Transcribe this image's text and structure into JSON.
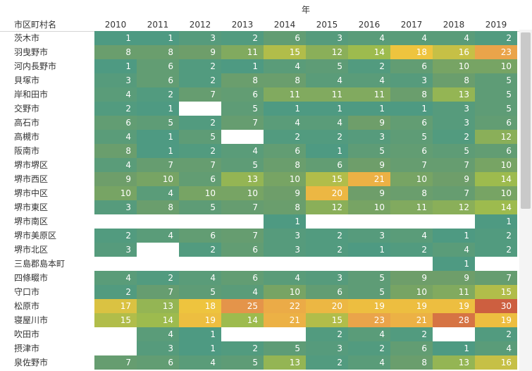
{
  "chart_data": {
    "type": "heatmap",
    "column_header": "年",
    "row_header": "市区町村名",
    "years": [
      "2010",
      "2011",
      "2012",
      "2013",
      "2014",
      "2015",
      "2016",
      "2017",
      "2018",
      "2019"
    ],
    "rows": [
      {
        "name": "茨木市",
        "values": [
          1,
          1,
          3,
          2,
          6,
          3,
          4,
          4,
          4,
          2
        ]
      },
      {
        "name": "羽曳野市",
        "values": [
          8,
          8,
          9,
          11,
          15,
          12,
          14,
          18,
          16,
          23
        ]
      },
      {
        "name": "河内長野市",
        "values": [
          1,
          6,
          2,
          1,
          4,
          5,
          2,
          6,
          10,
          10
        ]
      },
      {
        "name": "貝塚市",
        "values": [
          3,
          6,
          2,
          8,
          8,
          4,
          4,
          3,
          8,
          5
        ]
      },
      {
        "name": "岸和田市",
        "values": [
          4,
          2,
          7,
          6,
          11,
          11,
          11,
          8,
          13,
          5
        ]
      },
      {
        "name": "交野市",
        "values": [
          2,
          1,
          null,
          5,
          1,
          1,
          1,
          1,
          3,
          5
        ]
      },
      {
        "name": "高石市",
        "values": [
          6,
          5,
          2,
          7,
          4,
          4,
          9,
          6,
          3,
          6
        ]
      },
      {
        "name": "高槻市",
        "values": [
          4,
          1,
          5,
          null,
          2,
          2,
          3,
          5,
          2,
          12
        ]
      },
      {
        "name": "阪南市",
        "values": [
          8,
          1,
          2,
          4,
          6,
          1,
          5,
          6,
          5,
          6
        ]
      },
      {
        "name": "堺市堺区",
        "values": [
          4,
          7,
          7,
          5,
          8,
          6,
          9,
          7,
          7,
          10
        ]
      },
      {
        "name": "堺市西区",
        "values": [
          9,
          10,
          6,
          13,
          10,
          15,
          21,
          10,
          9,
          14
        ]
      },
      {
        "name": "堺市中区",
        "values": [
          10,
          4,
          10,
          10,
          9,
          20,
          9,
          8,
          7,
          10
        ]
      },
      {
        "name": "堺市東区",
        "values": [
          3,
          8,
          5,
          7,
          8,
          12,
          10,
          11,
          12,
          14
        ]
      },
      {
        "name": "堺市南区",
        "values": [
          null,
          null,
          null,
          null,
          1,
          null,
          null,
          null,
          null,
          1
        ]
      },
      {
        "name": "堺市美原区",
        "values": [
          2,
          4,
          6,
          7,
          3,
          2,
          3,
          4,
          1,
          2
        ]
      },
      {
        "name": "堺市北区",
        "values": [
          3,
          null,
          2,
          6,
          3,
          2,
          1,
          2,
          4,
          2
        ]
      },
      {
        "name": "三島郡島本町",
        "values": [
          null,
          null,
          null,
          null,
          null,
          null,
          null,
          null,
          1,
          null
        ]
      },
      {
        "name": "四條畷市",
        "values": [
          4,
          2,
          4,
          6,
          4,
          3,
          5,
          9,
          9,
          7
        ]
      },
      {
        "name": "守口市",
        "values": [
          2,
          7,
          5,
          4,
          10,
          6,
          5,
          10,
          11,
          15
        ]
      },
      {
        "name": "松原市",
        "values": [
          17,
          13,
          18,
          25,
          22,
          20,
          19,
          19,
          19,
          30
        ]
      },
      {
        "name": "寝屋川市",
        "values": [
          15,
          14,
          19,
          14,
          21,
          15,
          23,
          21,
          28,
          19
        ]
      },
      {
        "name": "吹田市",
        "values": [
          null,
          4,
          1,
          null,
          null,
          2,
          4,
          2,
          null,
          2
        ]
      },
      {
        "name": "摂津市",
        "values": [
          null,
          3,
          1,
          2,
          5,
          3,
          2,
          6,
          1,
          4
        ]
      },
      {
        "name": "泉佐野市",
        "values": [
          7,
          6,
          4,
          5,
          13,
          2,
          4,
          8,
          13,
          16
        ]
      }
    ],
    "color_scale": {
      "stops": [
        {
          "value": 1,
          "color": "#4e9a82"
        },
        {
          "value": 9,
          "color": "#6e9e6a"
        },
        {
          "value": 14,
          "color": "#9dbb4e"
        },
        {
          "value": 18,
          "color": "#eec43e"
        },
        {
          "value": 24,
          "color": "#e99e4c"
        },
        {
          "value": 30,
          "color": "#cd5f40"
        }
      ],
      "text_color": "#ffffff"
    },
    "header_color": "#333333",
    "grid": false
  }
}
